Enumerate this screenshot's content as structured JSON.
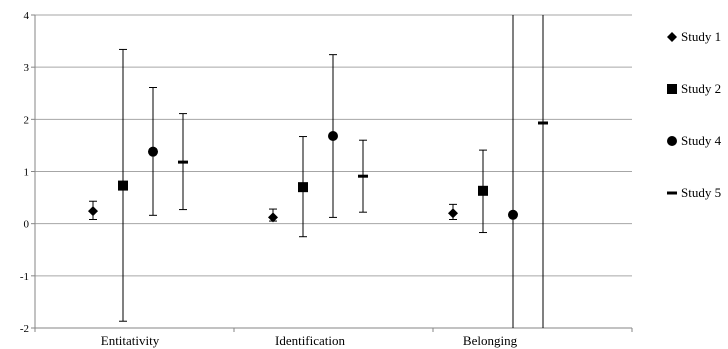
{
  "chart_data": {
    "type": "scatter",
    "title": "",
    "xlabel": "",
    "ylabel": "",
    "categories": [
      "Entitativity",
      "Identification",
      "Belonging"
    ],
    "ylim": [
      -2,
      4
    ],
    "yticks": [
      "-2",
      "-1",
      "0",
      "1",
      "2",
      "3",
      "4"
    ],
    "grid": true,
    "legend_position": "right",
    "series": [
      {
        "name": "Study 1",
        "marker": "diamond",
        "values": [
          0.24,
          0.12,
          0.2
        ],
        "ci_low": [
          0.08,
          0.05,
          0.08
        ],
        "ci_high": [
          0.43,
          0.28,
          0.37
        ]
      },
      {
        "name": "Study 2",
        "marker": "square",
        "values": [
          0.73,
          0.7,
          0.63
        ],
        "ci_low": [
          -1.87,
          -0.25,
          -0.17
        ],
        "ci_high": [
          3.34,
          1.67,
          1.41
        ]
      },
      {
        "name": "Study 4",
        "marker": "circle",
        "values": [
          1.38,
          1.68,
          0.17
        ],
        "ci_low": [
          0.16,
          0.12,
          -2.0
        ],
        "ci_high": [
          2.61,
          3.24,
          4.0
        ]
      },
      {
        "name": "Study 5",
        "marker": "dash",
        "values": [
          1.18,
          0.91,
          1.93
        ],
        "ci_low": [
          0.27,
          0.22,
          -2.0
        ],
        "ci_high": [
          2.11,
          1.6,
          4.0
        ]
      }
    ]
  },
  "colors": {
    "grid": "#a6a6a6",
    "axis": "#868686",
    "marker": "#000000",
    "errorbar": "#000000"
  }
}
